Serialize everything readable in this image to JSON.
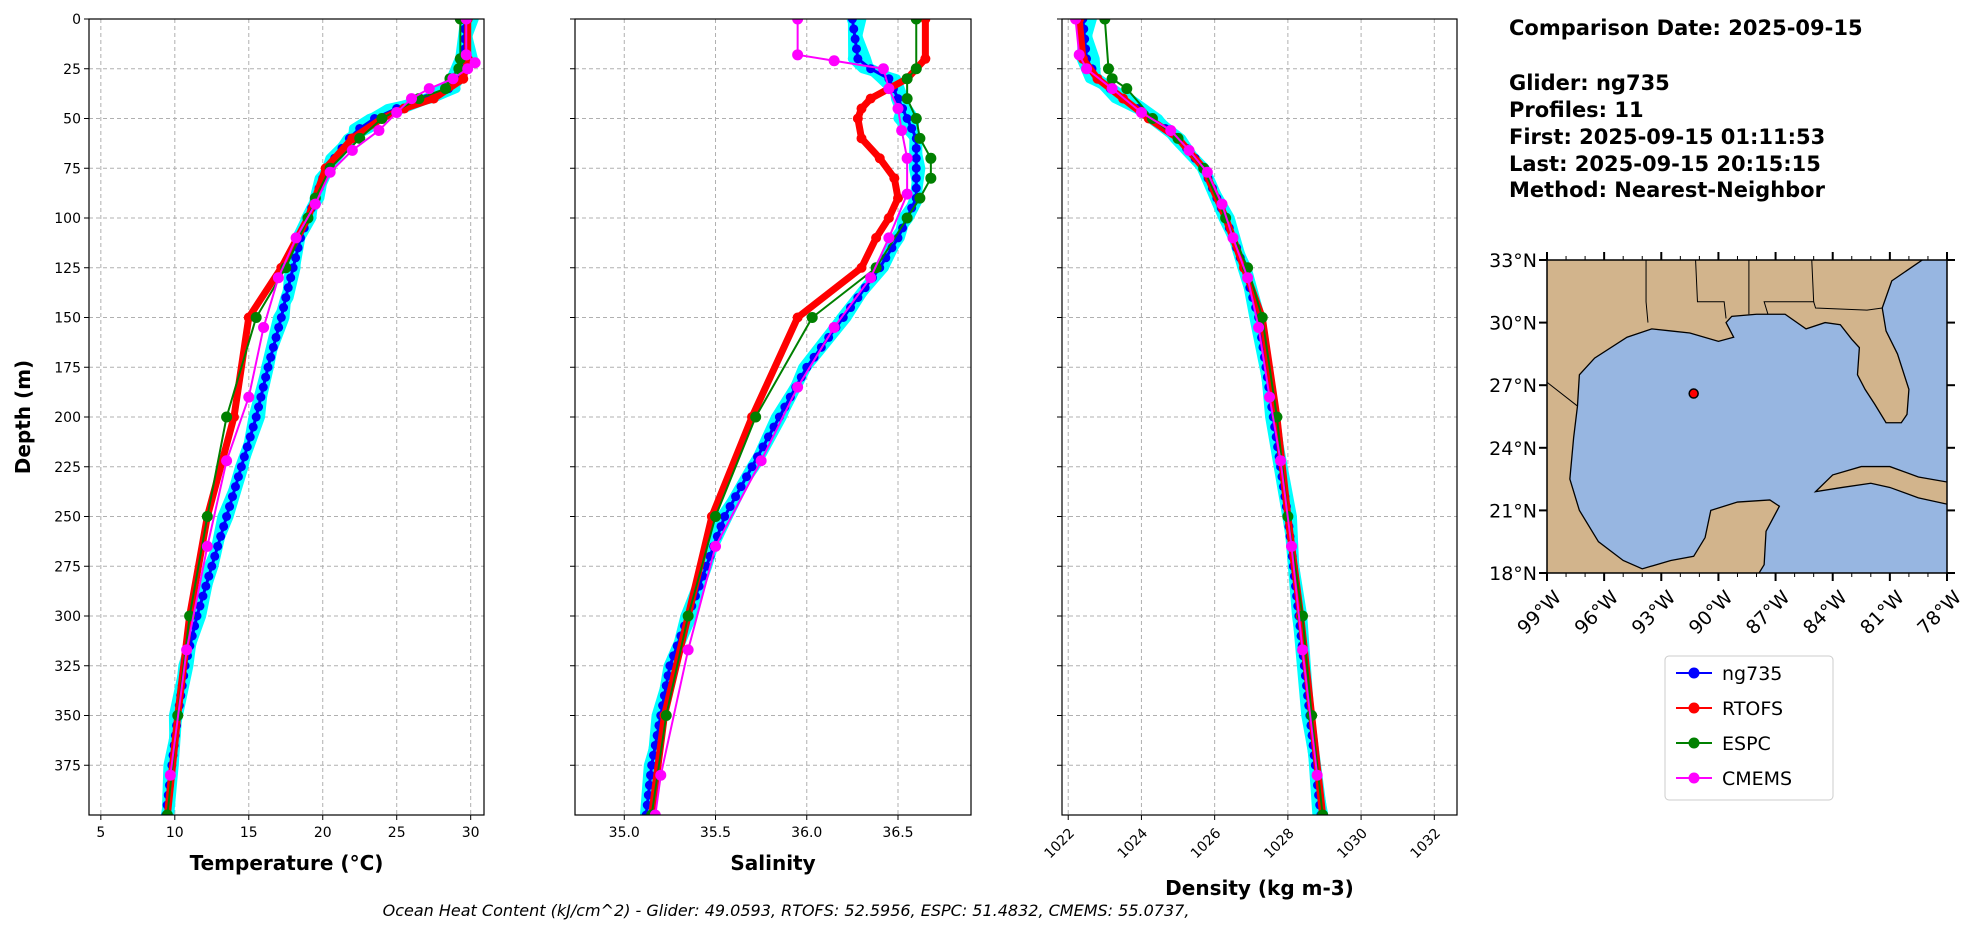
{
  "info": {
    "comparison_date": "Comparison Date: 2025-09-15",
    "glider": "Glider: ng735",
    "profiles": "Profiles: 11",
    "first": "First: 2025-09-15 01:11:53",
    "last": "Last: 2025-09-15 20:15:15",
    "method": "Method: Nearest-Neighbor"
  },
  "ohc_text": "Ocean Heat Content (kJ/cm^2) - Glider: 49.0593,  RTOFS: 52.5956,  ESPC: 51.4832,  CMEMS: 55.0737,",
  "legend": [
    {
      "name": "ng735",
      "color": "#0000ff"
    },
    {
      "name": "RTOFS",
      "color": "#ff0000"
    },
    {
      "name": "ESPC",
      "color": "#008000"
    },
    {
      "name": "CMEMS",
      "color": "#ff00ff"
    }
  ],
  "glider_profiles_color": "#00ffff",
  "chart_data": [
    {
      "type": "line",
      "xlabel": "Temperature (°C)",
      "ylabel": "Depth (m)",
      "xlim": [
        4.2,
        30.9
      ],
      "ylim": [
        400,
        0
      ],
      "grid": true,
      "xticks": [
        "5",
        "10",
        "15",
        "20",
        "25",
        "30"
      ],
      "yticks": [
        "0",
        "25",
        "50",
        "75",
        "100",
        "125",
        "150",
        "175",
        "200",
        "225",
        "250",
        "275",
        "300",
        "325",
        "350",
        "375"
      ],
      "series": [
        {
          "name": "ng735",
          "depth": [
            0,
            20,
            30,
            35,
            40,
            45,
            50,
            55,
            60,
            70,
            80,
            90,
            100,
            110,
            125,
            140,
            150,
            175,
            200,
            225,
            250,
            275,
            300,
            325,
            350,
            375,
            400
          ],
          "values": [
            29.6,
            29.6,
            29.2,
            28.5,
            27,
            25,
            23.5,
            22.5,
            21.8,
            20.8,
            20,
            19.5,
            19,
            18.5,
            18,
            17.5,
            17.2,
            16.3,
            15.5,
            14.5,
            13.5,
            12.5,
            11.5,
            10.7,
            10.2,
            9.8,
            9.4
          ]
        },
        {
          "name": "RTOFS",
          "depth": [
            0,
            20,
            30,
            40,
            45,
            50,
            60,
            75,
            100,
            125,
            150,
            200,
            250,
            300,
            350,
            400
          ],
          "values": [
            29.8,
            29.8,
            29.5,
            27.5,
            25.5,
            24,
            22,
            20.2,
            19,
            17.2,
            15,
            14,
            12.2,
            11,
            10.2,
            9.5
          ]
        },
        {
          "name": "ESPC",
          "depth": [
            0,
            20,
            25,
            30,
            35,
            40,
            50,
            60,
            75,
            90,
            100,
            125,
            150,
            200,
            250,
            300,
            350,
            400
          ],
          "values": [
            29.3,
            29.3,
            29.2,
            28.6,
            28.3,
            26.5,
            24,
            22.5,
            20.5,
            19.5,
            19,
            17.5,
            15.5,
            13.5,
            12.2,
            11,
            10.2,
            9.5
          ]
        },
        {
          "name": "CMEMS",
          "depth": [
            0,
            18,
            22,
            25,
            30,
            35,
            40,
            47,
            56,
            66,
            77,
            93,
            110,
            130,
            155,
            190,
            222,
            265,
            317,
            380
          ],
          "values": [
            29.7,
            29.7,
            30.3,
            29.8,
            28.8,
            27.2,
            26,
            25,
            23.8,
            22,
            20.5,
            19.5,
            18.2,
            17,
            16,
            15,
            13.5,
            12.2,
            10.8,
            9.7
          ]
        }
      ]
    },
    {
      "type": "line",
      "xlabel": "Salinity",
      "ylabel": "",
      "xlim": [
        34.73,
        36.9
      ],
      "ylim": [
        400,
        0
      ],
      "grid": true,
      "xticks": [
        "35.0",
        "35.5",
        "36.0",
        "36.5"
      ],
      "yticks": [],
      "series": [
        {
          "name": "ng735",
          "depth": [
            0,
            20,
            25,
            30,
            40,
            50,
            60,
            75,
            90,
            100,
            110,
            125,
            150,
            175,
            200,
            225,
            250,
            275,
            300,
            325,
            350,
            375,
            400
          ],
          "values": [
            36.25,
            36.28,
            36.35,
            36.45,
            36.5,
            36.55,
            36.6,
            36.6,
            36.6,
            36.55,
            36.5,
            36.4,
            36.2,
            36.0,
            35.85,
            35.7,
            35.55,
            35.45,
            35.35,
            35.25,
            35.2,
            35.15,
            35.12
          ]
        },
        {
          "name": "RTOFS",
          "depth": [
            0,
            20,
            30,
            35,
            40,
            45,
            50,
            60,
            70,
            80,
            90,
            100,
            110,
            125,
            150,
            200,
            250,
            300,
            350,
            400
          ],
          "values": [
            36.65,
            36.65,
            36.55,
            36.45,
            36.35,
            36.3,
            36.28,
            36.3,
            36.4,
            36.48,
            36.5,
            36.45,
            36.38,
            36.3,
            35.95,
            35.7,
            35.48,
            35.35,
            35.22,
            35.15
          ]
        },
        {
          "name": "ESPC",
          "depth": [
            0,
            25,
            30,
            40,
            50,
            60,
            70,
            80,
            90,
            100,
            125,
            150,
            200,
            250,
            300,
            350,
            400
          ],
          "values": [
            36.6,
            36.6,
            36.55,
            36.55,
            36.6,
            36.62,
            36.68,
            36.68,
            36.62,
            36.55,
            36.38,
            36.03,
            35.72,
            35.5,
            35.35,
            35.23,
            35.15
          ]
        },
        {
          "name": "CMEMS",
          "depth": [
            0,
            18,
            21,
            25,
            35,
            45,
            56,
            70,
            88,
            110,
            130,
            155,
            185,
            222,
            265,
            317,
            380,
            400
          ],
          "values": [
            35.95,
            35.95,
            36.15,
            36.42,
            36.45,
            36.5,
            36.52,
            36.55,
            36.55,
            36.45,
            36.35,
            36.15,
            35.95,
            35.75,
            35.5,
            35.35,
            35.2,
            35.17
          ]
        }
      ]
    },
    {
      "type": "line",
      "xlabel": "Density (kg m-3)",
      "ylabel": "",
      "xlim": [
        1021.83,
        1032.62
      ],
      "ylim": [
        400,
        0
      ],
      "grid": true,
      "xticks": [
        "1022",
        "1024",
        "1026",
        "1028",
        "1030",
        "1032"
      ],
      "yticks": [],
      "series": [
        {
          "name": "ng735",
          "depth": [
            0,
            20,
            30,
            40,
            50,
            60,
            75,
            100,
            125,
            150,
            200,
            250,
            300,
            350,
            400
          ],
          "values": [
            1022.4,
            1022.5,
            1022.8,
            1023.5,
            1024.3,
            1025,
            1025.7,
            1026.3,
            1026.8,
            1027.2,
            1027.6,
            1028,
            1028.3,
            1028.6,
            1028.9
          ]
        },
        {
          "name": "RTOFS",
          "depth": [
            0,
            20,
            30,
            40,
            50,
            60,
            75,
            100,
            125,
            150,
            200,
            250,
            300,
            350,
            400
          ],
          "values": [
            1022.3,
            1022.4,
            1022.8,
            1023.5,
            1024.2,
            1025,
            1025.7,
            1026.3,
            1026.8,
            1027.3,
            1027.7,
            1028,
            1028.35,
            1028.65,
            1028.95
          ]
        },
        {
          "name": "ESPC",
          "depth": [
            0,
            25,
            30,
            35,
            50,
            60,
            75,
            100,
            125,
            150,
            200,
            250,
            300,
            350,
            400
          ],
          "values": [
            1023,
            1023.1,
            1023.2,
            1023.6,
            1024.3,
            1025,
            1025.7,
            1026.3,
            1026.9,
            1027.3,
            1027.7,
            1028,
            1028.4,
            1028.65,
            1028.95
          ]
        },
        {
          "name": "CMEMS",
          "depth": [
            0,
            18,
            25,
            35,
            47,
            56,
            66,
            77,
            93,
            110,
            130,
            155,
            190,
            222,
            265,
            317,
            380
          ],
          "values": [
            1022.2,
            1022.3,
            1022.5,
            1023.2,
            1024,
            1024.8,
            1025.3,
            1025.8,
            1026.2,
            1026.5,
            1026.9,
            1027.2,
            1027.5,
            1027.8,
            1028.1,
            1028.4,
            1028.8
          ]
        }
      ]
    }
  ],
  "map": {
    "lon_range": [
      -99,
      -78
    ],
    "lat_range": [
      18,
      33
    ],
    "lon_ticks": [
      "99°W",
      "96°W",
      "93°W",
      "90°W",
      "87°W",
      "84°W",
      "81°W",
      "78°W"
    ],
    "lat_ticks": [
      "18°N",
      "21°N",
      "24°N",
      "27°N",
      "30°N",
      "33°N"
    ],
    "land_color": "#d2b48c",
    "ocean_color": "#97b6e1",
    "glider_position": {
      "lon": -91.3,
      "lat": 26.6
    }
  }
}
